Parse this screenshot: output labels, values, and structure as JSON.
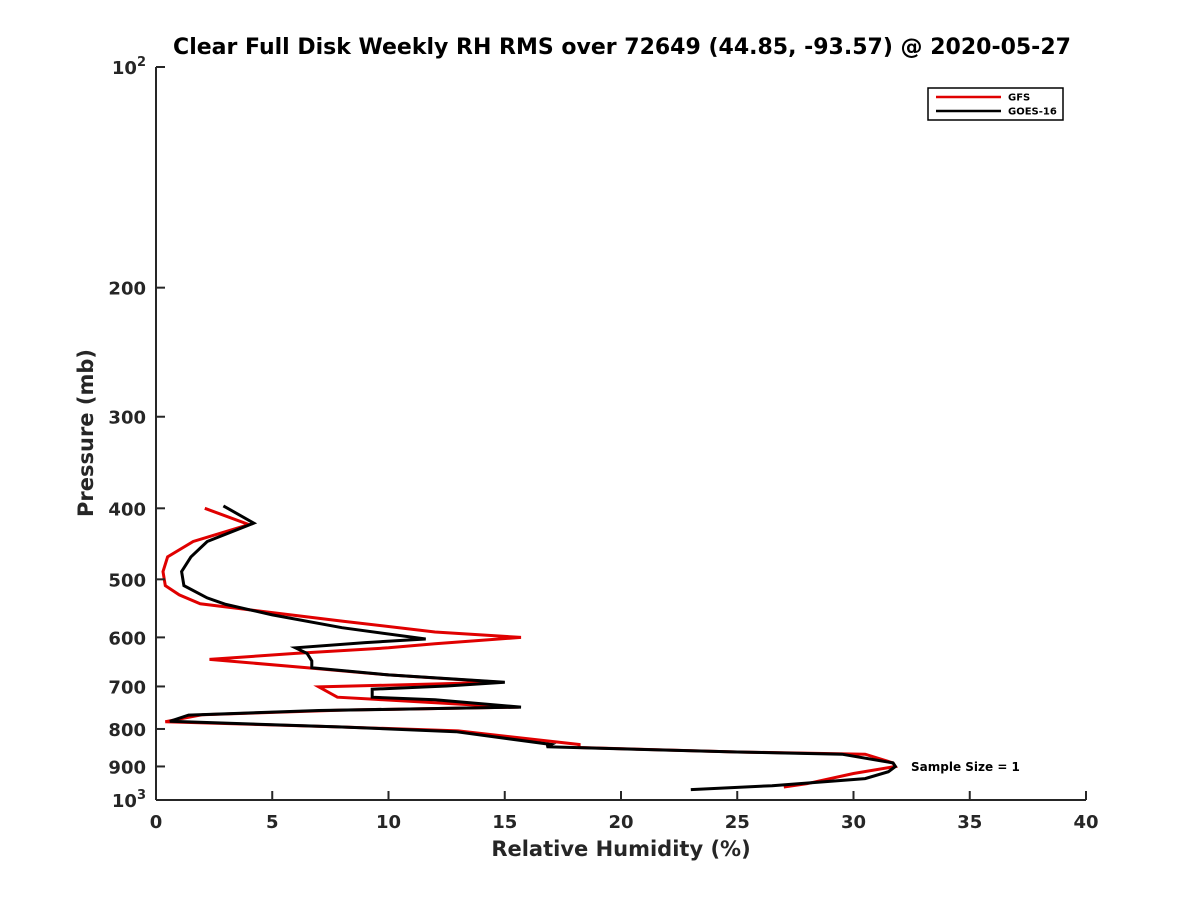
{
  "chart_data": {
    "type": "line",
    "title": "Clear Full Disk Weekly RH RMS over 72649 (44.85, -93.57) @ 2020-05-27",
    "xlabel": "Relative Humidity (%)",
    "ylabel": "Pressure (mb)",
    "xlim": [
      0,
      40
    ],
    "ylim": [
      100,
      1000
    ],
    "yscale": "log",
    "yreversed": true,
    "grid": false,
    "x_ticks": [
      0,
      5,
      10,
      15,
      20,
      25,
      30,
      35,
      40
    ],
    "y_ticks": [
      {
        "value": 100,
        "label": "10",
        "sup": "2"
      },
      {
        "value": 200,
        "label": "200",
        "sup": ""
      },
      {
        "value": 300,
        "label": "300",
        "sup": ""
      },
      {
        "value": 400,
        "label": "400",
        "sup": ""
      },
      {
        "value": 500,
        "label": "500",
        "sup": ""
      },
      {
        "value": 600,
        "label": "600",
        "sup": ""
      },
      {
        "value": 700,
        "label": "700",
        "sup": ""
      },
      {
        "value": 800,
        "label": "800",
        "sup": ""
      },
      {
        "value": 900,
        "label": "900",
        "sup": ""
      },
      {
        "value": 1000,
        "label": "10",
        "sup": "3"
      }
    ],
    "legend_position": "top-right",
    "annotation": "Sample Size = 1",
    "series": [
      {
        "name": "GFS",
        "color": "#e00000",
        "points": [
          [
            2.1,
            400
          ],
          [
            4.0,
            421
          ],
          [
            1.6,
            444
          ],
          [
            0.5,
            466
          ],
          [
            0.3,
            488
          ],
          [
            0.4,
            510
          ],
          [
            1.0,
            525
          ],
          [
            1.9,
            540
          ],
          [
            5.0,
            555
          ],
          [
            8.0,
            570
          ],
          [
            12.0,
            590
          ],
          [
            15.7,
            600
          ],
          [
            12.0,
            612
          ],
          [
            10.0,
            620
          ],
          [
            6.0,
            631
          ],
          [
            2.3,
            643
          ],
          [
            6.5,
            660
          ],
          [
            10.0,
            675
          ],
          [
            14.8,
            691
          ],
          [
            7.0,
            701
          ],
          [
            7.8,
            724
          ],
          [
            9.5,
            729
          ],
          [
            14.0,
            743
          ],
          [
            15.6,
            747
          ],
          [
            8.0,
            754
          ],
          [
            2.0,
            765
          ],
          [
            0.4,
            782
          ],
          [
            8.0,
            795
          ],
          [
            13.0,
            805
          ],
          [
            18.2,
            840
          ],
          [
            18.2,
            848
          ],
          [
            25.0,
            860
          ],
          [
            30.5,
            866
          ],
          [
            31.7,
            890
          ],
          [
            31.8,
            900
          ],
          [
            30.0,
            920
          ],
          [
            28.0,
            950
          ],
          [
            27.0,
            960
          ]
        ]
      },
      {
        "name": "GOES-16",
        "color": "#000000",
        "points": [
          [
            2.9,
            397
          ],
          [
            4.2,
            419
          ],
          [
            2.2,
            444
          ],
          [
            1.5,
            466
          ],
          [
            1.1,
            488
          ],
          [
            1.2,
            510
          ],
          [
            2.2,
            530
          ],
          [
            3.0,
            541
          ],
          [
            5.0,
            559
          ],
          [
            8.0,
            582
          ],
          [
            11.6,
            603
          ],
          [
            9.0,
            610
          ],
          [
            6.0,
            620
          ],
          [
            6.5,
            631
          ],
          [
            6.7,
            646
          ],
          [
            6.7,
            660
          ],
          [
            10.0,
            675
          ],
          [
            15.0,
            691
          ],
          [
            12.5,
            699
          ],
          [
            9.3,
            706
          ],
          [
            9.3,
            724
          ],
          [
            12.0,
            730
          ],
          [
            15.7,
            747
          ],
          [
            7.0,
            755
          ],
          [
            1.4,
            766
          ],
          [
            0.6,
            781
          ],
          [
            8.0,
            795
          ],
          [
            12.9,
            807
          ],
          [
            17.0,
            840
          ],
          [
            16.8,
            846
          ],
          [
            25.0,
            860
          ],
          [
            29.5,
            866
          ],
          [
            31.7,
            890
          ],
          [
            31.8,
            900
          ],
          [
            31.5,
            915
          ],
          [
            30.5,
            935
          ],
          [
            26.5,
            956
          ],
          [
            23.0,
            968
          ]
        ]
      }
    ]
  }
}
